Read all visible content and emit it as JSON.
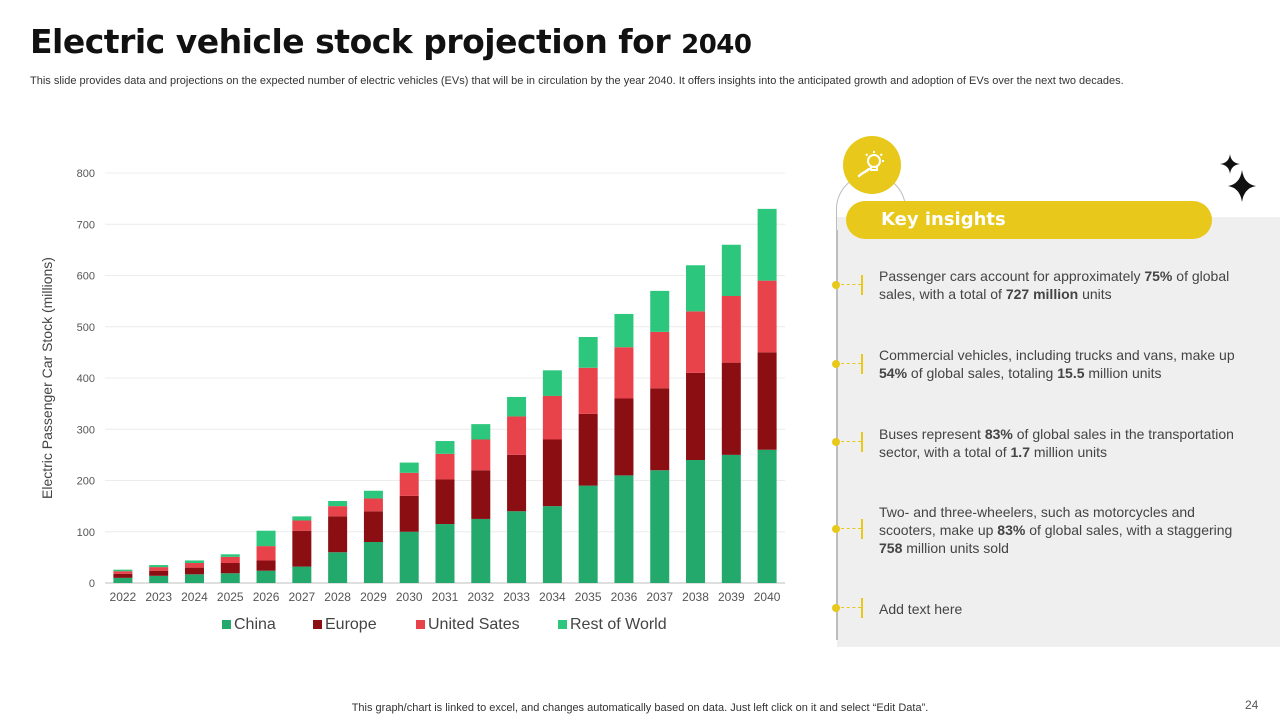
{
  "slide": {
    "title_main": "Electric vehicle stock projection for",
    "title_year": "2040",
    "subtitle": "This slide provides data and projections on the expected number of electric vehicles (EVs) that will be in circulation by the year 2040. It offers insights into the anticipated growth and adoption of EVs over the next two decades.",
    "footer": "This graph/chart is linked to excel, and changes automatically based on data. Just left click on it and select “Edit Data”.",
    "page_number": "24"
  },
  "insights": {
    "header": "Key insights",
    "icon": "lightbulb-icon",
    "accent_color": "#e8c81a",
    "items": [
      {
        "segments": [
          {
            "t": "Passenger cars account for approximately ",
            "b": false
          },
          {
            "t": "75%",
            "b": true
          },
          {
            "t": " of global sales, with a total of ",
            "b": false
          },
          {
            "t": "727 million",
            "b": true
          },
          {
            "t": " units",
            "b": false
          }
        ]
      },
      {
        "segments": [
          {
            "t": "Commercial vehicles, including trucks and vans, make up ",
            "b": false
          },
          {
            "t": "54%",
            "b": true
          },
          {
            "t": " of global sales, totaling ",
            "b": false
          },
          {
            "t": "15.5",
            "b": true
          },
          {
            "t": " million units",
            "b": false
          }
        ]
      },
      {
        "segments": [
          {
            "t": "Buses represent ",
            "b": false
          },
          {
            "t": "83%",
            "b": true
          },
          {
            "t": " of global sales in the transportation sector, with a total of ",
            "b": false
          },
          {
            "t": "1.7",
            "b": true
          },
          {
            "t": " million units",
            "b": false
          }
        ]
      },
      {
        "segments": [
          {
            "t": "Two- and three-wheelers, such as motorcycles and scooters, make up ",
            "b": false
          },
          {
            "t": "83%",
            "b": true
          },
          {
            "t": " of global sales, with a staggering ",
            "b": false
          },
          {
            "t": "758",
            "b": true
          },
          {
            "t": " million units sold",
            "b": false
          }
        ]
      },
      {
        "segments": [
          {
            "t": "Add text here",
            "b": false
          }
        ]
      }
    ]
  },
  "chart_data": {
    "type": "bar",
    "stacked": true,
    "ylabel": "Electric Passenger Car Stock (millions)",
    "xlabel": "",
    "ylim": [
      0,
      800
    ],
    "yticks": [
      0,
      100,
      200,
      300,
      400,
      500,
      600,
      700,
      800
    ],
    "categories": [
      "2022",
      "2023",
      "2024",
      "2025",
      "2026",
      "2027",
      "2028",
      "2029",
      "2030",
      "2031",
      "2032",
      "2033",
      "2034",
      "2035",
      "2036",
      "2037",
      "2038",
      "2039",
      "2040"
    ],
    "series": [
      {
        "name": "China",
        "color": "#23a96b",
        "values": [
          10,
          14,
          17,
          19,
          24,
          32,
          60,
          80,
          100,
          115,
          125,
          140,
          150,
          190,
          210,
          220,
          240,
          250,
          260
        ]
      },
      {
        "name": "Europe",
        "color": "#8b0e13",
        "values": [
          8,
          10,
          13,
          20,
          20,
          70,
          70,
          60,
          70,
          87,
          95,
          110,
          130,
          140,
          150,
          160,
          170,
          180,
          190
        ]
      },
      {
        "name": "United Sates",
        "color": "#e8424b",
        "values": [
          5,
          7,
          9,
          12,
          28,
          20,
          20,
          25,
          45,
          50,
          60,
          75,
          85,
          90,
          100,
          110,
          120,
          130,
          140
        ]
      },
      {
        "name": "Rest of World",
        "color": "#2cc77d",
        "values": [
          3,
          4,
          5,
          5,
          30,
          8,
          10,
          15,
          20,
          25,
          30,
          38,
          50,
          60,
          65,
          80,
          90,
          100,
          140
        ]
      }
    ]
  }
}
